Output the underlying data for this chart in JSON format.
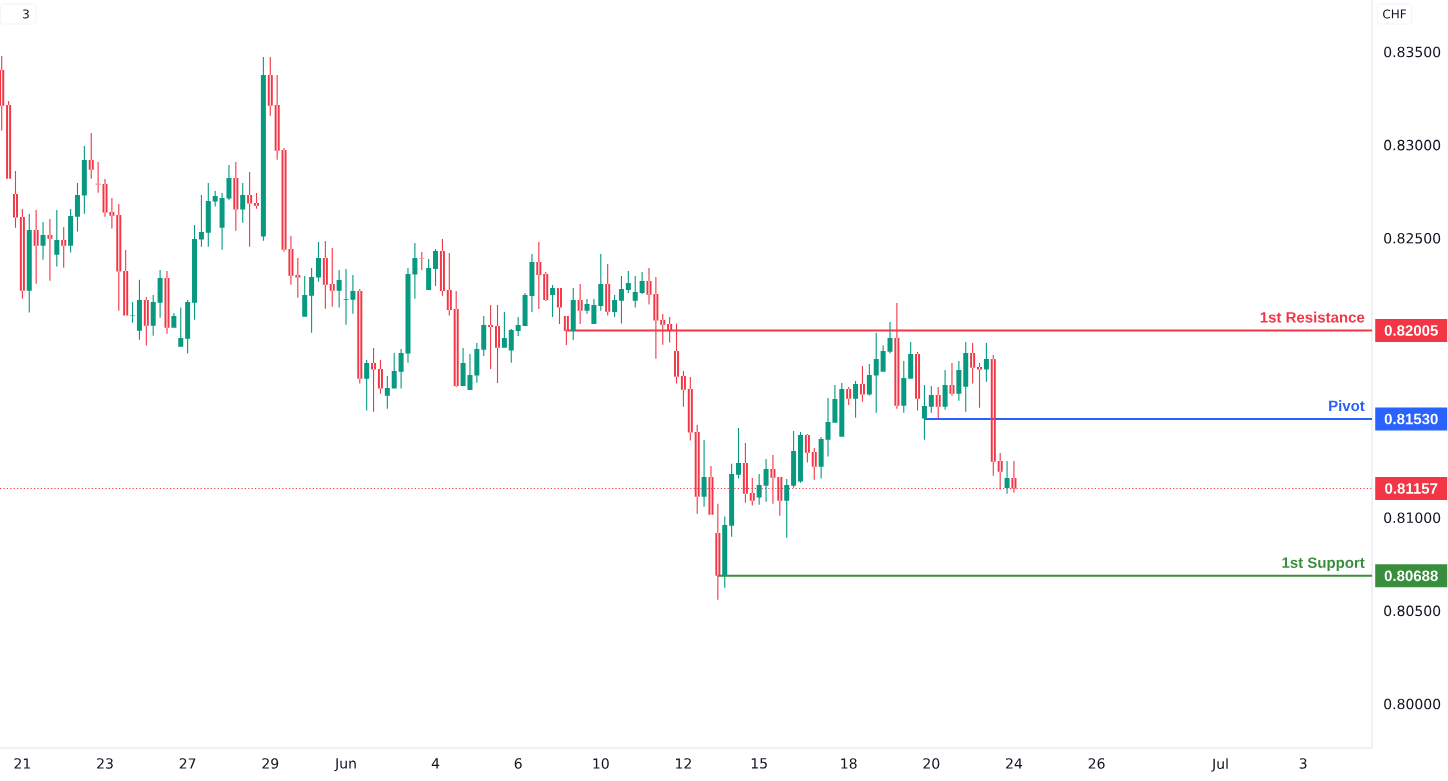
{
  "chart_data": {
    "type": "candlestick",
    "ylabel": "CHF",
    "annotations": [
      "3"
    ],
    "categories": [
      null,
      null,
      null,
      "21",
      null,
      null,
      null,
      null,
      null,
      null,
      null,
      null,
      null,
      null,
      null,
      "23",
      null,
      null,
      null,
      null,
      null,
      null,
      null,
      null,
      null,
      null,
      null,
      "27",
      null,
      null,
      null,
      null,
      null,
      null,
      null,
      null,
      null,
      null,
      null,
      "29",
      null,
      null,
      null,
      null,
      null,
      null,
      null,
      null,
      null,
      null,
      "Jun",
      null,
      null,
      null,
      null,
      null,
      null,
      null,
      null,
      null,
      null,
      null,
      null,
      "4",
      null,
      null,
      null,
      null,
      null,
      null,
      null,
      null,
      null,
      null,
      null,
      "6",
      null,
      null,
      null,
      null,
      null,
      null,
      null,
      null,
      null,
      null,
      null,
      "10",
      null,
      null,
      null,
      null,
      null,
      null,
      null,
      null,
      null,
      null,
      null,
      "12",
      null,
      null,
      null,
      null,
      null,
      null,
      null,
      null,
      null,
      null,
      "15",
      null,
      null,
      null,
      null,
      null,
      null,
      null,
      null,
      null,
      null,
      null,
      null,
      "18",
      null,
      null,
      null,
      null,
      null,
      null,
      null,
      null,
      null,
      null,
      null,
      "20",
      null,
      null,
      null,
      null,
      null,
      null,
      null,
      null,
      null,
      null,
      null,
      "24",
      null,
      null,
      null,
      null,
      null,
      null,
      null,
      null,
      null,
      null,
      null,
      "26",
      null,
      null,
      null,
      null,
      null,
      null,
      null,
      null,
      null,
      null,
      null,
      null,
      null,
      null,
      null,
      null,
      null,
      "Jul",
      null,
      null,
      null,
      null,
      null,
      null,
      null,
      null,
      null,
      null,
      null,
      "3",
      null,
      null,
      null,
      null,
      null,
      null,
      null,
      null,
      null,
      null
    ],
    "ohlc": [
      [
        0.83403,
        0.83478,
        0.83078,
        0.83212
      ],
      [
        0.83215,
        0.83237,
        0.8282,
        0.8282
      ],
      [
        0.82738,
        0.82861,
        0.82557,
        0.82611
      ],
      [
        0.82614,
        0.82657,
        0.82176,
        0.82219
      ],
      [
        0.82219,
        0.8263,
        0.82101,
        0.82544
      ],
      [
        0.82544,
        0.82652,
        0.82256,
        0.8246
      ],
      [
        0.8246,
        0.82587,
        0.82385,
        0.82518
      ],
      [
        0.82518,
        0.82604,
        0.82272,
        0.82498
      ],
      [
        0.82412,
        0.82652,
        0.82348,
        0.82491
      ],
      [
        0.82491,
        0.82561,
        0.82342,
        0.8246
      ],
      [
        0.8246,
        0.82657,
        0.82423,
        0.8262
      ],
      [
        0.82616,
        0.82797,
        0.82536,
        0.82732
      ],
      [
        0.82729,
        0.82995,
        0.82632,
        0.8292
      ],
      [
        0.8292,
        0.83065,
        0.8282,
        0.82868
      ],
      [
        0.82793,
        0.8291,
        0.82745,
        0.82788
      ],
      [
        0.82791,
        0.82818,
        0.82616,
        0.82638
      ],
      [
        0.82641,
        0.82716,
        0.82552,
        0.82621
      ],
      [
        0.82625,
        0.82684,
        0.82111,
        0.82321
      ],
      [
        0.82324,
        0.82437,
        0.82085,
        0.82085
      ],
      [
        0.82085,
        0.82158,
        0.82047,
        0.82088
      ],
      [
        0.82004,
        0.82278,
        0.81956,
        0.82169
      ],
      [
        0.82169,
        0.82185,
        0.81924,
        0.82031
      ],
      [
        0.82031,
        0.82196,
        0.81977,
        0.82158
      ],
      [
        0.82154,
        0.8233,
        0.82074,
        0.82287
      ],
      [
        0.82287,
        0.82324,
        0.81988,
        0.8202
      ],
      [
        0.8202,
        0.82099,
        0.8202,
        0.82083
      ],
      [
        0.81918,
        0.82128,
        0.81918,
        0.81965
      ],
      [
        0.81961,
        0.82169,
        0.81881,
        0.82158
      ],
      [
        0.82154,
        0.82571,
        0.82063,
        0.82496
      ],
      [
        0.82493,
        0.82732,
        0.82455,
        0.82534
      ],
      [
        0.8253,
        0.82797,
        0.82455,
        0.827
      ],
      [
        0.82697,
        0.82754,
        0.8267,
        0.82727
      ],
      [
        0.82557,
        0.82743,
        0.82439,
        0.82716
      ],
      [
        0.82713,
        0.82893,
        0.82706,
        0.82824
      ],
      [
        0.82824,
        0.8291,
        0.82541,
        0.82654
      ],
      [
        0.82654,
        0.82797,
        0.82584,
        0.82732
      ],
      [
        0.82732,
        0.82856,
        0.82455,
        0.82686
      ],
      [
        0.82689,
        0.82743,
        0.82659,
        0.82675
      ],
      [
        0.82509,
        0.83473,
        0.82487,
        0.83377
      ],
      [
        0.83377,
        0.83473,
        0.83158,
        0.83212
      ],
      [
        0.83215,
        0.83377,
        0.82922,
        0.8297
      ],
      [
        0.82974,
        0.82985,
        0.82428,
        0.82439
      ],
      [
        0.82442,
        0.82512,
        0.82251,
        0.82299
      ],
      [
        0.82303,
        0.82394,
        0.82181,
        0.82289
      ],
      [
        0.82079,
        0.82298,
        0.82079,
        0.82196
      ],
      [
        0.82192,
        0.8234,
        0.81993,
        0.82292
      ],
      [
        0.82289,
        0.8248,
        0.82267,
        0.82394
      ],
      [
        0.82394,
        0.82485,
        0.82122,
        0.82251
      ],
      [
        0.82255,
        0.82448,
        0.82133,
        0.82219
      ],
      [
        0.82219,
        0.8233,
        0.82128,
        0.82276
      ],
      [
        0.8217,
        0.82335,
        0.82036,
        0.82174
      ],
      [
        0.8217,
        0.82303,
        0.82095,
        0.82217
      ],
      [
        0.82217,
        0.82228,
        0.8172,
        0.81746
      ],
      [
        0.81746,
        0.81847,
        0.81575,
        0.8183
      ],
      [
        0.8183,
        0.81911,
        0.81569,
        0.81795
      ],
      [
        0.81798,
        0.81847,
        0.81666,
        0.81693
      ],
      [
        0.81655,
        0.81761,
        0.81585,
        0.81696
      ],
      [
        0.81693,
        0.81884,
        0.81693,
        0.81788
      ],
      [
        0.81784,
        0.81906,
        0.81693,
        0.81884
      ],
      [
        0.81881,
        0.8234,
        0.81832,
        0.82308
      ],
      [
        0.82305,
        0.82475,
        0.82176,
        0.82394
      ],
      [
        0.82392,
        0.82426,
        0.8233,
        0.82389
      ],
      [
        0.82222,
        0.82389,
        0.82222,
        0.8234
      ],
      [
        0.82335,
        0.82442,
        0.82244,
        0.82432
      ],
      [
        0.82432,
        0.82496,
        0.82192,
        0.82217
      ],
      [
        0.82222,
        0.82421,
        0.82085,
        0.82115
      ],
      [
        0.8212,
        0.82217,
        0.81702,
        0.81707
      ],
      [
        0.81707,
        0.81911,
        0.81707,
        0.8183
      ],
      [
        0.81686,
        0.81879,
        0.81686,
        0.81766
      ],
      [
        0.81763,
        0.81938,
        0.81725,
        0.81906
      ],
      [
        0.81902,
        0.82083,
        0.81868,
        0.82035
      ],
      [
        0.82035,
        0.82142,
        0.81798,
        0.82024
      ],
      [
        0.82029,
        0.82142,
        0.81723,
        0.81913
      ],
      [
        0.81913,
        0.82104,
        0.81913,
        0.81965
      ],
      [
        0.81897,
        0.82013,
        0.81832,
        0.82008
      ],
      [
        0.82002,
        0.82077,
        0.81975,
        0.82035
      ],
      [
        0.82029,
        0.82206,
        0.82029,
        0.82196
      ],
      [
        0.8219,
        0.82416,
        0.82104,
        0.82373
      ],
      [
        0.82373,
        0.8248,
        0.8212,
        0.82303
      ],
      [
        0.82308,
        0.82319,
        0.82163,
        0.82169
      ],
      [
        0.82196,
        0.82249,
        0.82077,
        0.82233
      ],
      [
        0.82233,
        0.82233,
        0.8204,
        0.82128
      ],
      [
        0.82083,
        0.82083,
        0.81927,
        0.82002
      ],
      [
        0.82002,
        0.82233,
        0.81954,
        0.82169
      ],
      [
        0.82169,
        0.82255,
        0.8204,
        0.82111
      ],
      [
        0.82111,
        0.82174,
        0.82095,
        0.82147
      ],
      [
        0.8204,
        0.82174,
        0.8204,
        0.82142
      ],
      [
        0.82136,
        0.82416,
        0.82111,
        0.82255
      ],
      [
        0.82255,
        0.82362,
        0.82085,
        0.82106
      ],
      [
        0.82104,
        0.82196,
        0.82077,
        0.82169
      ],
      [
        0.82165,
        0.82298,
        0.82042,
        0.82228
      ],
      [
        0.82222,
        0.82324,
        0.82206,
        0.8226
      ],
      [
        0.82165,
        0.82298,
        0.82128,
        0.82212
      ],
      [
        0.82206,
        0.82319,
        0.82201,
        0.82271
      ],
      [
        0.82271,
        0.8234,
        0.82144,
        0.82197
      ],
      [
        0.82201,
        0.82292,
        0.81854,
        0.82058
      ],
      [
        0.82061,
        0.82094,
        0.81929,
        0.82036
      ],
      [
        0.8204,
        0.82077,
        0.8194,
        0.82004
      ],
      [
        0.81895,
        0.82042,
        0.8172,
        0.81757
      ],
      [
        0.81761,
        0.81788,
        0.81596,
        0.81687
      ],
      [
        0.81691,
        0.81755,
        0.81414,
        0.81457
      ],
      [
        0.8146,
        0.81498,
        0.81022,
        0.81113
      ],
      [
        0.81113,
        0.81417,
        0.81059,
        0.81219
      ],
      [
        0.81219,
        0.81278,
        0.81016,
        0.81016
      ],
      [
        0.80918,
        0.81075,
        0.8056,
        0.80689
      ],
      [
        0.80689,
        0.81006,
        0.80624,
        0.80961
      ],
      [
        0.80957,
        0.8129,
        0.80898,
        0.81235
      ],
      [
        0.81231,
        0.81482,
        0.8121,
        0.81294
      ],
      [
        0.81294,
        0.81401,
        0.81081,
        0.81129
      ],
      [
        0.81133,
        0.81213,
        0.81065,
        0.81091
      ],
      [
        0.81108,
        0.81235,
        0.8107,
        0.81176
      ],
      [
        0.81172,
        0.81315,
        0.81086,
        0.81261
      ],
      [
        0.81261,
        0.81337,
        0.81075,
        0.81215
      ],
      [
        0.81219,
        0.81219,
        0.81011,
        0.81091
      ],
      [
        0.81091,
        0.81208,
        0.80893,
        0.81176
      ],
      [
        0.81172,
        0.81465,
        0.81161,
        0.81358
      ],
      [
        0.81194,
        0.8146,
        0.81188,
        0.81444
      ],
      [
        0.81444,
        0.81449,
        0.81296,
        0.81349
      ],
      [
        0.81353,
        0.81374,
        0.81204,
        0.81274
      ],
      [
        0.81274,
        0.81433,
        0.8121,
        0.81423
      ],
      [
        0.81419,
        0.81643,
        0.81328,
        0.81514
      ],
      [
        0.8151,
        0.81712,
        0.8151,
        0.81637
      ],
      [
        0.81435,
        0.81723,
        0.81435,
        0.81691
      ],
      [
        0.81691,
        0.81702,
        0.81605,
        0.81639
      ],
      [
        0.81639,
        0.81734,
        0.81537,
        0.81718
      ],
      [
        0.81718,
        0.81814,
        0.81623,
        0.81661
      ],
      [
        0.81661,
        0.81825,
        0.81655,
        0.81766
      ],
      [
        0.81763,
        0.81993,
        0.81564,
        0.81852
      ],
      [
        0.81784,
        0.81924,
        0.81784,
        0.81895
      ],
      [
        0.81891,
        0.82051,
        0.81881,
        0.81965
      ],
      [
        0.81965,
        0.82153,
        0.81585,
        0.81601
      ],
      [
        0.81601,
        0.81841,
        0.81564,
        0.8175
      ],
      [
        0.81746,
        0.81943,
        0.81746,
        0.81879
      ],
      [
        0.81879,
        0.8189,
        0.81575,
        0.81639
      ],
      [
        0.81532,
        0.81712,
        0.81419,
        0.816
      ],
      [
        0.81596,
        0.81707,
        0.81564,
        0.81659
      ],
      [
        0.81659,
        0.81702,
        0.81532,
        0.81596
      ],
      [
        0.81596,
        0.81793,
        0.8158,
        0.81712
      ],
      [
        0.81712,
        0.8183,
        0.81655,
        0.81666
      ],
      [
        0.81666,
        0.81841,
        0.81628,
        0.81793
      ],
      [
        0.81703,
        0.81943,
        0.81569,
        0.81884
      ],
      [
        0.81884,
        0.81938,
        0.8172,
        0.81805
      ],
      [
        0.81809,
        0.8183,
        0.81591,
        0.81795
      ],
      [
        0.81795,
        0.81938,
        0.8173,
        0.81852
      ],
      [
        0.81852,
        0.81873,
        0.81226,
        0.81301
      ],
      [
        0.81304,
        0.81347,
        0.81151,
        0.81247
      ],
      [
        0.8116,
        0.81304,
        0.81129,
        0.81213
      ],
      [
        0.81213,
        0.81304,
        0.81134,
        0.81157
      ],
      null,
      null,
      null,
      null,
      null,
      null,
      null,
      null,
      null,
      null,
      null,
      null,
      null,
      null,
      null,
      null,
      null,
      null,
      null,
      null,
      null,
      null,
      null,
      null,
      null,
      null,
      null,
      null,
      null,
      null,
      null,
      null,
      null,
      null,
      null,
      null,
      null,
      null,
      null,
      null,
      null,
      null,
      null,
      null,
      null,
      null,
      null,
      null,
      null,
      null,
      null,
      null
    ],
    "colors": [
      "#f23645",
      "#f23645",
      "#f23645",
      "#f23645",
      "#089981",
      "#f23645",
      "#089981",
      "#f23645",
      "#089981",
      "#f23645",
      "#089981",
      "#089981",
      "#089981",
      "#f23645",
      "#f23645",
      "#f23645",
      "#f23645",
      "#f23645",
      "#f23645",
      "#089981",
      "#089981",
      "#f23645",
      "#089981",
      "#089981",
      "#f23645",
      "#089981",
      "#089981",
      "#089981",
      "#089981",
      "#089981",
      "#089981",
      "#089981",
      "#089981",
      "#089981",
      "#f23645",
      "#089981",
      "#f23645",
      "#f23645",
      "#089981",
      "#f23645",
      "#f23645",
      "#f23645",
      "#f23645",
      "#f23645",
      "#089981",
      "#089981",
      "#089981",
      "#f23645",
      "#f23645",
      "#089981",
      "#089981",
      "#089981",
      "#f23645",
      "#089981",
      "#f23645",
      "#f23645",
      "#089981",
      "#089981",
      "#089981",
      "#089981",
      "#089981",
      "#f23645",
      "#089981",
      "#089981",
      "#f23645",
      "#f23645",
      "#f23645",
      "#089981",
      "#089981",
      "#089981",
      "#089981",
      "#f23645",
      "#f23645",
      "#089981",
      "#089981",
      "#089981",
      "#089981",
      "#089981",
      "#f23645",
      "#f23645",
      "#089981",
      "#f23645",
      "#f23645",
      "#089981",
      "#f23645",
      "#089981",
      "#089981",
      "#089981",
      "#f23645",
      "#089981",
      "#089981",
      "#089981",
      "#089981",
      "#089981",
      "#f23645",
      "#f23645",
      "#f23645",
      "#f23645",
      "#f23645",
      "#f23645",
      "#f23645",
      "#f23645",
      "#089981",
      "#f23645",
      "#f23645",
      "#089981",
      "#089981",
      "#089981",
      "#f23645",
      "#f23645",
      "#089981",
      "#089981",
      "#f23645",
      "#f23645",
      "#089981",
      "#089981",
      "#089981",
      "#f23645",
      "#f23645",
      "#089981",
      "#089981",
      "#089981",
      "#089981",
      "#f23645",
      "#089981",
      "#f23645",
      "#089981",
      "#089981",
      "#089981",
      "#089981",
      "#f23645",
      "#089981",
      "#089981",
      "#f23645",
      "#089981",
      "#089981",
      "#f23645",
      "#089981",
      "#f23645",
      "#089981",
      "#089981",
      "#f23645",
      "#f23645",
      "#089981",
      "#f23645",
      "#f23645",
      "#089981",
      "#f23645",
      null,
      null,
      null,
      null,
      null,
      null,
      null,
      null,
      null,
      null,
      null,
      null,
      null,
      null,
      null,
      null,
      null,
      null,
      null,
      null,
      null,
      null,
      null,
      null,
      null,
      null,
      null,
      null,
      null,
      null,
      null,
      null,
      null,
      null,
      null,
      null,
      null,
      null,
      null,
      null,
      null,
      null,
      null,
      null,
      null,
      null,
      null,
      null,
      null,
      null,
      null,
      null
    ],
    "series": [
      {
        "type": "line",
        "name": "1st Resistance",
        "color": "#f23645",
        "values": [
          null,
          null,
          null,
          null,
          null,
          null,
          null,
          null,
          null,
          null,
          null,
          null,
          null,
          null,
          null,
          null,
          null,
          null,
          null,
          null,
          null,
          null,
          null,
          null,
          null,
          null,
          null,
          null,
          null,
          null,
          null,
          null,
          null,
          null,
          null,
          null,
          null,
          null,
          null,
          null,
          null,
          null,
          null,
          null,
          null,
          null,
          null,
          null,
          null,
          null,
          null,
          null,
          null,
          null,
          null,
          null,
          null,
          null,
          null,
          null,
          null,
          null,
          null,
          null,
          null,
          null,
          null,
          null,
          null,
          null,
          null,
          null,
          null,
          null,
          null,
          null,
          null,
          null,
          null,
          null,
          null,
          null,
          0.82005,
          0.82005,
          0.82005,
          0.82005,
          0.82005,
          0.82005,
          0.82005,
          0.82005,
          0.82005,
          0.82005,
          0.82005,
          0.82005,
          0.82005,
          0.82005,
          0.82005,
          0.82005,
          0.82005,
          0.82005,
          0.82005,
          0.82005,
          0.82005,
          0.82005,
          0.82005,
          0.82005,
          0.82005,
          0.82005,
          0.82005,
          0.82005,
          0.82005,
          0.82005,
          0.82005,
          0.82005,
          0.82005,
          0.82005,
          0.82005,
          0.82005,
          0.82005,
          0.82005,
          0.82005,
          0.82005,
          0.82005,
          0.82005,
          0.82005,
          0.82005,
          0.82005,
          0.82005,
          0.82005,
          0.82005,
          0.82005,
          0.82005,
          0.82005,
          0.82005,
          0.82005,
          0.82005,
          0.82005,
          0.82005,
          0.82005,
          0.82005,
          0.82005,
          0.82005,
          0.82005,
          0.82005,
          0.82005,
          0.82005,
          0.82005,
          0.82005,
          0.82005,
          0.82005,
          0.82005,
          0.82005,
          0.82005,
          0.82005,
          0.82005,
          0.82005,
          0.82005,
          0.82005,
          0.82005,
          0.82005,
          0.82005,
          0.82005,
          0.82005,
          0.82005,
          0.82005,
          0.82005,
          0.82005,
          0.82005,
          0.82005,
          0.82005,
          0.82005,
          0.82005,
          0.82005,
          0.82005,
          0.82005,
          0.82005,
          0.82005,
          0.82005,
          0.82005,
          0.82005,
          0.82005,
          0.82005,
          0.82005,
          0.82005,
          0.82005,
          0.82005,
          0.82005,
          0.82005,
          0.82005,
          0.82005,
          0.82005,
          0.82005,
          0.82005,
          0.82005,
          0.82005,
          0.82005,
          0.82005,
          0.82005,
          0.82005,
          0.82005
        ],
        "value_labels": [
          null,
          null,
          null,
          null,
          null,
          null,
          null,
          null,
          null,
          null,
          null,
          null,
          null,
          null,
          null,
          null,
          null,
          null,
          null,
          null,
          null,
          null,
          null,
          null,
          null,
          null,
          null,
          null,
          null,
          null,
          null,
          null,
          null,
          null,
          null,
          null,
          null,
          null,
          null,
          null,
          null,
          null,
          null,
          null,
          null,
          null,
          null,
          null,
          null,
          null,
          null,
          null,
          null,
          null,
          null,
          null,
          null,
          null,
          null,
          null,
          null,
          null,
          null,
          null,
          null,
          null,
          null,
          null,
          null,
          null,
          null,
          null,
          null,
          null,
          null,
          null,
          null,
          null,
          null,
          null,
          null,
          null,
          null,
          null,
          null,
          null,
          null,
          null,
          null,
          null,
          null,
          null,
          null,
          null,
          null,
          null,
          null,
          null,
          null,
          null,
          null,
          null,
          null,
          null,
          null,
          null,
          null,
          null,
          null,
          null,
          null,
          null,
          null,
          null,
          null,
          null,
          null,
          null,
          null,
          null,
          null,
          null,
          null,
          null,
          null,
          null,
          null,
          null,
          null,
          null,
          null,
          null,
          null,
          null,
          null,
          null,
          null,
          null,
          null,
          null,
          null,
          null,
          null,
          null,
          null,
          null,
          null,
          null,
          null,
          null,
          null,
          null,
          null,
          null,
          null,
          null,
          null,
          null,
          null,
          null,
          null,
          null,
          null,
          null,
          null,
          null,
          null,
          null,
          null,
          null,
          null,
          null,
          null,
          null,
          null,
          null,
          null,
          null,
          null,
          null,
          null,
          null,
          null,
          null,
          null,
          null,
          null,
          null,
          null,
          null,
          null,
          null,
          null,
          null,
          null,
          null,
          null,
          null,
          null,
          "0.82005"
        ]
      },
      {
        "type": "line",
        "name": "Pivot",
        "color": "#2962ff",
        "values": [
          null,
          null,
          null,
          null,
          null,
          null,
          null,
          null,
          null,
          null,
          null,
          null,
          null,
          null,
          null,
          null,
          null,
          null,
          null,
          null,
          null,
          null,
          null,
          null,
          null,
          null,
          null,
          null,
          null,
          null,
          null,
          null,
          null,
          null,
          null,
          null,
          null,
          null,
          null,
          null,
          null,
          null,
          null,
          null,
          null,
          null,
          null,
          null,
          null,
          null,
          null,
          null,
          null,
          null,
          null,
          null,
          null,
          null,
          null,
          null,
          null,
          null,
          null,
          null,
          null,
          null,
          null,
          null,
          null,
          null,
          null,
          null,
          null,
          null,
          null,
          null,
          null,
          null,
          null,
          null,
          null,
          null,
          null,
          null,
          null,
          null,
          null,
          null,
          null,
          null,
          null,
          null,
          null,
          null,
          null,
          null,
          null,
          null,
          null,
          null,
          null,
          null,
          null,
          null,
          null,
          null,
          null,
          null,
          null,
          null,
          null,
          null,
          null,
          null,
          null,
          null,
          null,
          null,
          null,
          null,
          null,
          null,
          null,
          null,
          null,
          null,
          null,
          null,
          null,
          null,
          null,
          null,
          null,
          null,
          0.8153,
          0.8153,
          0.8153,
          0.8153,
          0.8153,
          0.8153,
          0.8153,
          0.8153,
          0.8153,
          0.8153,
          0.8153,
          0.8153,
          0.8153,
          0.8153,
          0.8153,
          0.8153,
          0.8153,
          0.8153,
          0.8153,
          0.8153,
          0.8153,
          0.8153,
          0.8153,
          0.8153,
          0.8153,
          0.8153,
          0.8153,
          0.8153,
          0.8153,
          0.8153,
          0.8153,
          0.8153,
          0.8153,
          0.8153,
          0.8153,
          0.8153,
          0.8153,
          0.8153,
          0.8153,
          0.8153,
          0.8153,
          0.8153,
          0.8153,
          0.8153,
          0.8153,
          0.8153,
          0.8153,
          0.8153,
          0.8153,
          0.8153,
          0.8153,
          0.8153,
          0.8153,
          0.8153,
          0.8153,
          0.8153,
          0.8153,
          0.8153,
          0.8153,
          0.8153,
          0.8153,
          0.8153,
          0.8153,
          0.8153,
          0.8153,
          0.8153
        ],
        "value_labels": [
          null,
          null,
          null,
          null,
          null,
          null,
          null,
          null,
          null,
          null,
          null,
          null,
          null,
          null,
          null,
          null,
          null,
          null,
          null,
          null,
          null,
          null,
          null,
          null,
          null,
          null,
          null,
          null,
          null,
          null,
          null,
          null,
          null,
          null,
          null,
          null,
          null,
          null,
          null,
          null,
          null,
          null,
          null,
          null,
          null,
          null,
          null,
          null,
          null,
          null,
          null,
          null,
          null,
          null,
          null,
          null,
          null,
          null,
          null,
          null,
          null,
          null,
          null,
          null,
          null,
          null,
          null,
          null,
          null,
          null,
          null,
          null,
          null,
          null,
          null,
          null,
          null,
          null,
          null,
          null,
          null,
          null,
          null,
          null,
          null,
          null,
          null,
          null,
          null,
          null,
          null,
          null,
          null,
          null,
          null,
          null,
          null,
          null,
          null,
          null,
          null,
          null,
          null,
          null,
          null,
          null,
          null,
          null,
          null,
          null,
          null,
          null,
          null,
          null,
          null,
          null,
          null,
          null,
          null,
          null,
          null,
          null,
          null,
          null,
          null,
          null,
          null,
          null,
          null,
          null,
          null,
          null,
          null,
          null,
          null,
          null,
          null,
          null,
          null,
          null,
          null,
          null,
          null,
          null,
          null,
          null,
          null,
          null,
          null,
          null,
          null,
          null,
          null,
          null,
          null,
          null,
          null,
          null,
          null,
          null,
          null,
          null,
          null,
          null,
          null,
          null,
          null,
          null,
          null,
          null,
          null,
          null,
          null,
          null,
          null,
          null,
          null,
          null,
          null,
          null,
          null,
          null,
          null,
          null,
          null,
          null,
          null,
          null,
          null,
          null,
          null,
          null,
          null,
          null,
          null,
          null,
          null,
          null,
          null,
          "0.81530"
        ]
      },
      {
        "type": "line",
        "name": "1st Support",
        "color": "#388e3c",
        "values": [
          null,
          null,
          null,
          null,
          null,
          null,
          null,
          null,
          null,
          null,
          null,
          null,
          null,
          null,
          null,
          null,
          null,
          null,
          null,
          null,
          null,
          null,
          null,
          null,
          null,
          null,
          null,
          null,
          null,
          null,
          null,
          null,
          null,
          null,
          null,
          null,
          null,
          null,
          null,
          null,
          null,
          null,
          null,
          null,
          null,
          null,
          null,
          null,
          null,
          null,
          null,
          null,
          null,
          null,
          null,
          null,
          null,
          null,
          null,
          null,
          null,
          null,
          null,
          null,
          null,
          null,
          null,
          null,
          null,
          null,
          null,
          null,
          null,
          null,
          null,
          null,
          null,
          null,
          null,
          null,
          null,
          null,
          null,
          null,
          null,
          null,
          null,
          null,
          null,
          null,
          null,
          null,
          null,
          null,
          null,
          null,
          null,
          null,
          null,
          null,
          null,
          null,
          null,
          null,
          0.80688,
          0.80688,
          0.80688,
          0.80688,
          0.80688,
          0.80688,
          0.80688,
          0.80688,
          0.80688,
          0.80688,
          0.80688,
          0.80688,
          0.80688,
          0.80688,
          0.80688,
          0.80688,
          0.80688,
          0.80688,
          0.80688,
          0.80688,
          0.80688,
          0.80688,
          0.80688,
          0.80688,
          0.80688,
          0.80688,
          0.80688,
          0.80688,
          0.80688,
          0.80688,
          0.80688,
          0.80688,
          0.80688,
          0.80688,
          0.80688,
          0.80688,
          0.80688,
          0.80688,
          0.80688,
          0.80688,
          0.80688,
          0.80688,
          0.80688,
          0.80688,
          0.80688,
          0.80688,
          0.80688,
          0.80688,
          0.80688,
          0.80688,
          0.80688,
          0.80688,
          0.80688,
          0.80688,
          0.80688,
          0.80688,
          0.80688,
          0.80688,
          0.80688,
          0.80688,
          0.80688,
          0.80688,
          0.80688,
          0.80688,
          0.80688,
          0.80688,
          0.80688,
          0.80688,
          0.80688,
          0.80688,
          0.80688,
          0.80688,
          0.80688,
          0.80688,
          0.80688,
          0.80688,
          0.80688,
          0.80688,
          0.80688,
          0.80688,
          0.80688,
          0.80688,
          0.80688,
          0.80688,
          0.80688,
          0.80688,
          0.80688,
          0.80688,
          0.80688,
          0.80688,
          0.80688,
          0.80688,
          0.80688,
          0.80688,
          0.80688,
          0.80688
        ],
        "value_labels": [
          null,
          null,
          null,
          null,
          null,
          null,
          null,
          null,
          null,
          null,
          null,
          null,
          null,
          null,
          null,
          null,
          null,
          null,
          null,
          null,
          null,
          null,
          null,
          null,
          null,
          null,
          null,
          null,
          null,
          null,
          null,
          null,
          null,
          null,
          null,
          null,
          null,
          null,
          null,
          null,
          null,
          null,
          null,
          null,
          null,
          null,
          null,
          null,
          null,
          null,
          null,
          null,
          null,
          null,
          null,
          null,
          null,
          null,
          null,
          null,
          null,
          null,
          null,
          null,
          null,
          null,
          null,
          null,
          null,
          null,
          null,
          null,
          null,
          null,
          null,
          null,
          null,
          null,
          null,
          null,
          null,
          null,
          null,
          null,
          null,
          null,
          null,
          null,
          null,
          null,
          null,
          null,
          null,
          null,
          null,
          null,
          null,
          null,
          null,
          null,
          null,
          null,
          null,
          null,
          null,
          null,
          null,
          null,
          null,
          null,
          null,
          null,
          null,
          null,
          null,
          null,
          null,
          null,
          null,
          null,
          null,
          null,
          null,
          null,
          null,
          null,
          null,
          null,
          null,
          null,
          null,
          null,
          null,
          null,
          null,
          null,
          null,
          null,
          null,
          null,
          null,
          null,
          null,
          null,
          null,
          null,
          null,
          null,
          null,
          null,
          null,
          null,
          null,
          null,
          null,
          null,
          null,
          null,
          null,
          null,
          null,
          null,
          null,
          null,
          null,
          null,
          null,
          null,
          null,
          null,
          null,
          null,
          null,
          null,
          null,
          null,
          null,
          null,
          null,
          null,
          null,
          null,
          null,
          null,
          null,
          null,
          null,
          null,
          null,
          null,
          null,
          null,
          null,
          null,
          null,
          null,
          null,
          null,
          null,
          "0.80688"
        ]
      }
    ],
    "ref_lines": [
      {
        "axis": "y",
        "value": 0.81157,
        "label": "0.81157",
        "color": "#f23645",
        "line_style": "dotted"
      }
    ],
    "ylim": [
      0.79764,
      0.83779
    ],
    "yticks": [
      {
        "value": 0.8,
        "label": "0.80000"
      },
      {
        "value": 0.805,
        "label": "0.80500"
      },
      {
        "value": 0.81,
        "label": "0.81000"
      },
      {
        "value": 0.825,
        "label": "0.82500"
      },
      {
        "value": 0.83,
        "label": "0.83000"
      },
      {
        "value": 0.835,
        "label": "0.83500"
      }
    ]
  }
}
